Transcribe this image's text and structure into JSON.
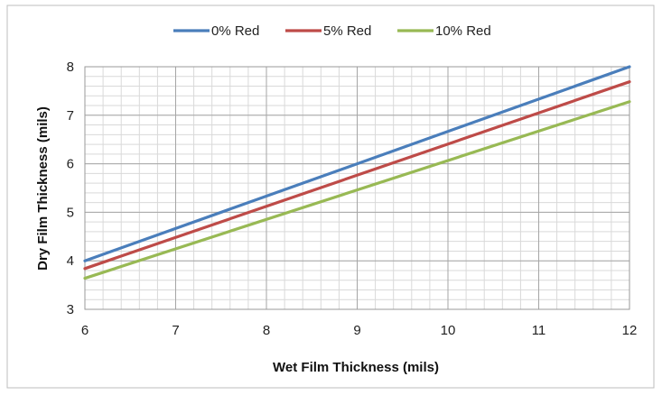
{
  "chart_data": {
    "type": "line",
    "xlabel": "Wet Film Thickness (mils)",
    "ylabel": "Dry Film Thickness (mils)",
    "xlim": [
      6,
      12
    ],
    "ylim": [
      3,
      8
    ],
    "x_ticks": [
      "6",
      "7",
      "8",
      "9",
      "10",
      "11",
      "12"
    ],
    "y_ticks": [
      "3",
      "4",
      "5",
      "6",
      "7",
      "8"
    ],
    "grid": true,
    "legend_position": "top",
    "series": [
      {
        "name": "0% Red",
        "color": "#4a7ebb",
        "x": [
          6,
          12
        ],
        "y": [
          4.0,
          8.0
        ]
      },
      {
        "name": "5% Red",
        "color": "#be4b48",
        "x": [
          6,
          12
        ],
        "y": [
          3.84,
          7.69
        ]
      },
      {
        "name": "10% Red",
        "color": "#98b954",
        "x": [
          6,
          12
        ],
        "y": [
          3.64,
          7.28
        ]
      }
    ]
  }
}
